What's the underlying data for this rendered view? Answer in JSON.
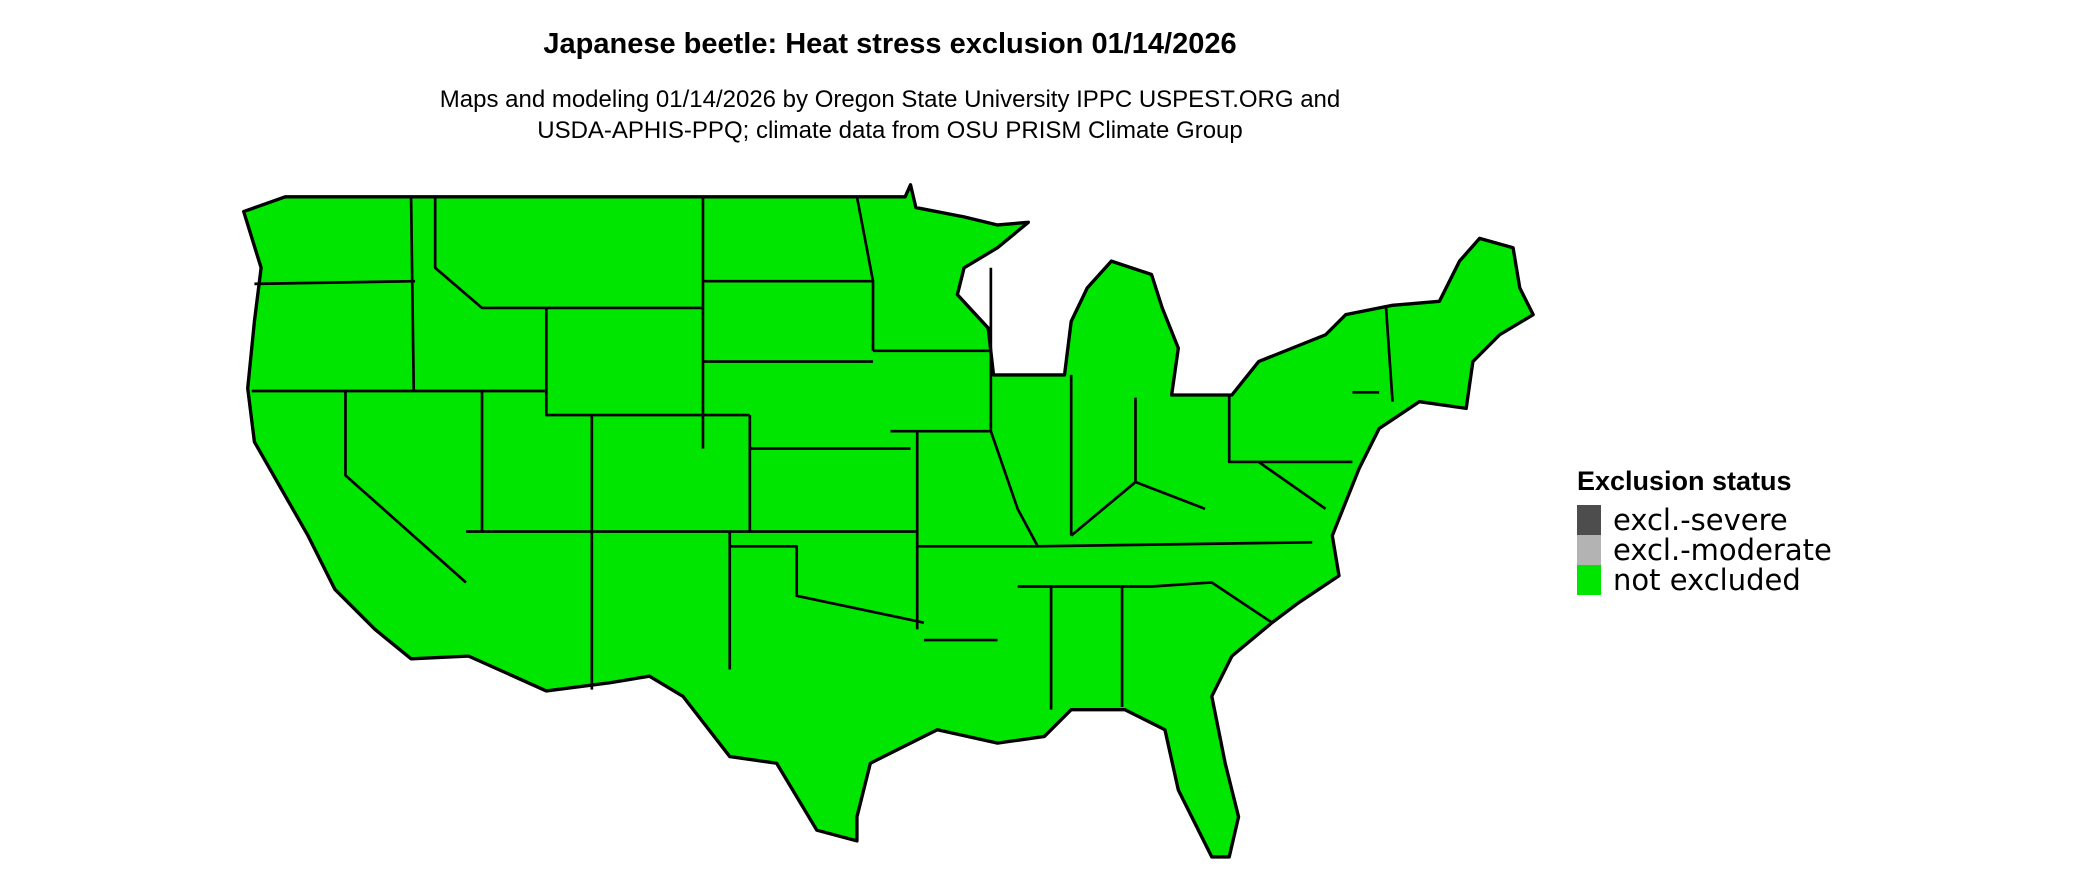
{
  "title": "Japanese beetle: Heat stress exclusion 01/14/2026",
  "subtitle_line1": "Maps and modeling 01/14/2026 by Oregon State University IPPC USPEST.ORG and",
  "subtitle_line2": "USDA-APHIS-PPQ; climate data from OSU PRISM Climate Group",
  "map": {
    "region": "Contiguous United States",
    "fill_color": "#00e600",
    "border_color": "#000000",
    "status_everywhere": "not excluded"
  },
  "legend": {
    "title": "Exclusion status",
    "items": [
      {
        "label": "excl.-severe",
        "color": "#4d4d4d"
      },
      {
        "label": "excl.-moderate",
        "color": "#b3b3b3"
      },
      {
        "label": "not excluded",
        "color": "#00e600"
      }
    ]
  }
}
